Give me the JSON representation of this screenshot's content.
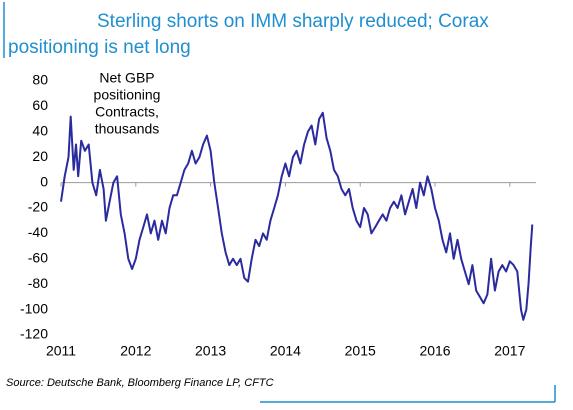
{
  "chart_data": {
    "type": "line",
    "title": [
      "Sterling shorts on IMM sharply reduced; Corax",
      "positioning is net long"
    ],
    "annotation": [
      "Net GBP",
      "positioning",
      "Contracts,",
      "thousands"
    ],
    "source": "Source: Deutsche Bank, Bloomberg Finance LP, CFTC",
    "x": [
      2011.0,
      2011.05,
      2011.1,
      2011.13,
      2011.17,
      2011.2,
      2011.23,
      2011.27,
      2011.32,
      2011.37,
      2011.42,
      2011.47,
      2011.52,
      2011.57,
      2011.6,
      2011.65,
      2011.7,
      2011.75,
      2011.8,
      2011.85,
      2011.9,
      2011.95,
      2012.0,
      2012.05,
      2012.1,
      2012.15,
      2012.2,
      2012.25,
      2012.3,
      2012.35,
      2012.4,
      2012.45,
      2012.5,
      2012.55,
      2012.6,
      2012.65,
      2012.7,
      2012.75,
      2012.8,
      2012.85,
      2012.9,
      2012.95,
      2013.0,
      2013.05,
      2013.1,
      2013.15,
      2013.2,
      2013.25,
      2013.3,
      2013.35,
      2013.4,
      2013.45,
      2013.5,
      2013.55,
      2013.6,
      2013.65,
      2013.7,
      2013.75,
      2013.8,
      2013.85,
      2013.9,
      2013.95,
      2014.0,
      2014.05,
      2014.1,
      2014.15,
      2014.2,
      2014.25,
      2014.3,
      2014.35,
      2014.4,
      2014.45,
      2014.5,
      2014.55,
      2014.6,
      2014.65,
      2014.7,
      2014.75,
      2014.8,
      2014.85,
      2014.9,
      2014.95,
      2015.0,
      2015.05,
      2015.1,
      2015.15,
      2015.2,
      2015.25,
      2015.3,
      2015.35,
      2015.4,
      2015.45,
      2015.5,
      2015.55,
      2015.6,
      2015.65,
      2015.7,
      2015.75,
      2015.8,
      2015.85,
      2015.9,
      2015.95,
      2016.0,
      2016.05,
      2016.1,
      2016.15,
      2016.2,
      2016.25,
      2016.3,
      2016.35,
      2016.4,
      2016.45,
      2016.5,
      2016.55,
      2016.6,
      2016.65,
      2016.7,
      2016.75,
      2016.8,
      2016.85,
      2016.9,
      2016.95,
      2017.0,
      2017.05,
      2017.1,
      2017.15,
      2017.18,
      2017.22,
      2017.25,
      2017.28,
      2017.3
    ],
    "series": [
      {
        "name": "Net GBP positioning",
        "color": "#2b2ba0",
        "values": [
          -15,
          5,
          20,
          52,
          10,
          30,
          5,
          33,
          25,
          30,
          0,
          -10,
          10,
          -5,
          -30,
          -15,
          0,
          5,
          -25,
          -40,
          -60,
          -68,
          -60,
          -45,
          -35,
          -25,
          -40,
          -30,
          -45,
          -30,
          -40,
          -20,
          -10,
          -10,
          0,
          10,
          15,
          25,
          15,
          20,
          30,
          37,
          25,
          0,
          -20,
          -40,
          -55,
          -65,
          -60,
          -65,
          -60,
          -75,
          -78,
          -60,
          -45,
          -50,
          -40,
          -45,
          -30,
          -20,
          -10,
          5,
          15,
          5,
          20,
          25,
          15,
          30,
          40,
          45,
          30,
          50,
          55,
          35,
          25,
          10,
          5,
          -5,
          -10,
          -5,
          -20,
          -30,
          -35,
          -20,
          -25,
          -40,
          -35,
          -30,
          -25,
          -30,
          -20,
          -15,
          -20,
          -10,
          -25,
          -15,
          -5,
          -20,
          0,
          -10,
          5,
          -5,
          -20,
          -30,
          -45,
          -55,
          -40,
          -60,
          -45,
          -60,
          -70,
          -80,
          -65,
          -85,
          -90,
          -95,
          -88,
          -60,
          -85,
          -70,
          -65,
          -70,
          -62,
          -65,
          -70,
          -100,
          -108,
          -100,
          -80,
          -50,
          -33
        ]
      }
    ],
    "xlim": [
      2011,
      2017.35
    ],
    "xticks": [
      2011,
      2012,
      2013,
      2014,
      2015,
      2016,
      2017
    ],
    "ylim": [
      -120,
      80
    ],
    "yticks": [
      -120,
      -100,
      -80,
      -60,
      -40,
      -20,
      0,
      20,
      40,
      60,
      80
    ]
  }
}
